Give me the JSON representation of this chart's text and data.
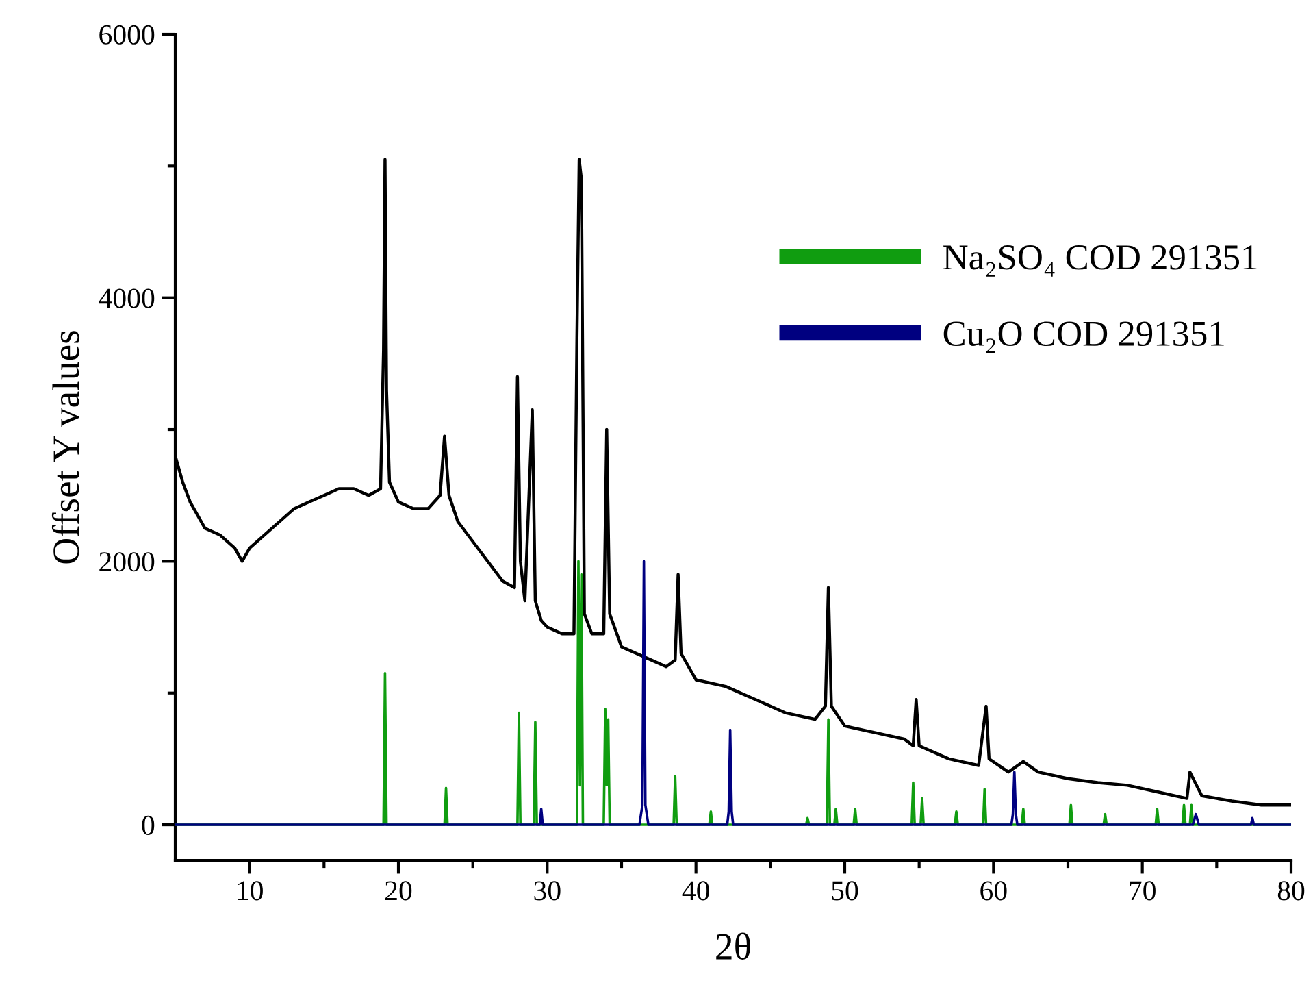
{
  "chart_data": {
    "type": "line",
    "xlabel": "2θ",
    "ylabel": "Offset Y values",
    "xlim": [
      5,
      80
    ],
    "ylim": [
      -270,
      6000
    ],
    "xticks": [
      10,
      20,
      30,
      40,
      50,
      60,
      70,
      80,
      {
        "value": 15,
        "label": null
      },
      {
        "value": 25,
        "label": null
      },
      {
        "value": 35,
        "label": null
      },
      {
        "value": 45,
        "label": null
      },
      {
        "value": 55,
        "label": null
      },
      {
        "value": 65,
        "label": null
      },
      {
        "value": 75,
        "label": null
      }
    ],
    "yticks": [
      0,
      2000,
      4000,
      6000,
      {
        "value": 1000,
        "label": null
      },
      {
        "value": 3000,
        "label": null
      },
      {
        "value": 5000,
        "label": null
      }
    ],
    "grid": false,
    "legend": "right",
    "marker": "none",
    "line_style": "solid",
    "series": [
      {
        "color": "#000000",
        "x": [
          5,
          5.5,
          6,
          7,
          8,
          9,
          9.5,
          10,
          11,
          12,
          13,
          14,
          15,
          16,
          17,
          18,
          18.8,
          19.0,
          19.1,
          19.2,
          19.4,
          20,
          21,
          22,
          22.8,
          23.1,
          23.4,
          24,
          25,
          26,
          27,
          27.8,
          28.0,
          28.2,
          28.5,
          29.0,
          29.2,
          29.6,
          30,
          31,
          31.8,
          32.0,
          32.15,
          32.3,
          32.5,
          33,
          33.8,
          34.0,
          34.2,
          35,
          36,
          37,
          38,
          38.6,
          38.8,
          39.0,
          40,
          42,
          44,
          46,
          48,
          48.7,
          48.9,
          49.1,
          50,
          52,
          54,
          54.6,
          54.8,
          55,
          57,
          59,
          59.5,
          59.7,
          61,
          62,
          63,
          65,
          67,
          69,
          71,
          73,
          73.2,
          74,
          76,
          78,
          80
        ],
        "values": [
          2800,
          2600,
          2450,
          2250,
          2200,
          2100,
          2000,
          2100,
          2200,
          2300,
          2400,
          2450,
          2500,
          2550,
          2550,
          2500,
          2550,
          3600,
          5050,
          3300,
          2600,
          2450,
          2400,
          2400,
          2500,
          2950,
          2500,
          2300,
          2150,
          2000,
          1850,
          1800,
          3400,
          2000,
          1700,
          3150,
          1700,
          1550,
          1500,
          1450,
          1450,
          3700,
          5050,
          4900,
          1600,
          1450,
          1450,
          3000,
          1600,
          1350,
          1300,
          1250,
          1200,
          1250,
          1900,
          1300,
          1100,
          1050,
          950,
          850,
          800,
          900,
          1800,
          900,
          750,
          700,
          650,
          600,
          950,
          600,
          500,
          450,
          900,
          500,
          400,
          480,
          400,
          350,
          320,
          300,
          250,
          200,
          400,
          220,
          180,
          150,
          150
        ]
      },
      {
        "name": "Na₂SO₄ COD 291351",
        "color": "#109d10",
        "x": [
          5,
          19.0,
          19.1,
          19.2,
          23.1,
          23.2,
          23.3,
          28.0,
          28.1,
          28.2,
          29.1,
          29.2,
          29.3,
          32.0,
          32.1,
          32.2,
          32.3,
          32.4,
          33.8,
          33.9,
          34.0,
          34.1,
          34.2,
          38.5,
          38.6,
          38.7,
          40.9,
          41.0,
          41.1,
          47.4,
          47.5,
          47.6,
          48.8,
          48.9,
          49.0,
          49.3,
          49.4,
          49.5,
          50.6,
          50.7,
          50.8,
          54.5,
          54.6,
          54.7,
          55.1,
          55.2,
          55.3,
          57.4,
          57.5,
          57.6,
          59.3,
          59.4,
          59.5,
          61.9,
          62.0,
          62.1,
          65.1,
          65.2,
          65.3,
          67.4,
          67.5,
          67.6,
          70.9,
          71.0,
          71.1,
          72.7,
          72.8,
          72.9,
          73.2,
          73.3,
          73.4,
          80
        ],
        "values": [
          0,
          0,
          1150,
          0,
          0,
          280,
          0,
          0,
          850,
          0,
          0,
          780,
          0,
          0,
          2000,
          300,
          1900,
          0,
          0,
          880,
          300,
          800,
          0,
          0,
          370,
          0,
          0,
          100,
          0,
          0,
          50,
          0,
          0,
          800,
          0,
          0,
          120,
          0,
          0,
          120,
          0,
          0,
          320,
          0,
          0,
          200,
          0,
          0,
          100,
          0,
          0,
          270,
          0,
          0,
          120,
          0,
          0,
          150,
          0,
          0,
          80,
          0,
          0,
          120,
          0,
          0,
          150,
          0,
          0,
          150,
          0,
          0
        ]
      },
      {
        "name": "Cu₂O COD 291351",
        "color": "#000080",
        "x": [
          5,
          29.5,
          29.6,
          29.7,
          36.2,
          36.4,
          36.5,
          36.6,
          36.8,
          42.1,
          42.2,
          42.3,
          42.4,
          42.5,
          61.2,
          61.3,
          61.4,
          61.5,
          61.6,
          73.4,
          73.6,
          73.8,
          77.3,
          77.4,
          77.5,
          80
        ],
        "values": [
          0,
          0,
          120,
          0,
          0,
          150,
          2000,
          150,
          0,
          0,
          100,
          720,
          100,
          0,
          0,
          80,
          400,
          80,
          0,
          0,
          80,
          0,
          0,
          50,
          0,
          0
        ]
      }
    ]
  }
}
